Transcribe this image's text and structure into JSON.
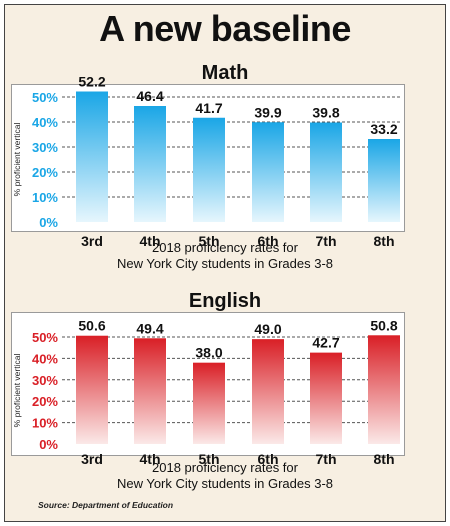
{
  "title": "A new baseline",
  "source": "Source: Department of Education",
  "chart_data": [
    {
      "type": "bar",
      "title": "Math",
      "categories": [
        "3rd",
        "4th",
        "5th",
        "6th",
        "7th",
        "8th"
      ],
      "values": [
        52.2,
        46.4,
        41.7,
        39.9,
        39.8,
        33.2
      ],
      "value_labels": [
        "52.2",
        "46.4",
        "41.7",
        "39.9",
        "39.8",
        "33.2"
      ],
      "ylabel": "% proficient vertical",
      "yticks": [
        "0%",
        "10%",
        "20%",
        "30%",
        "40%",
        "50%"
      ],
      "ylim": [
        0,
        55
      ],
      "xlabel_lines": [
        "2018 proficiency rates for",
        "New York City students in Grades 3-8"
      ],
      "grid": true,
      "colors": {
        "top": "#1aa6e6",
        "bottom": "#e6f6fd",
        "tick": "#1aa6e6"
      }
    },
    {
      "type": "bar",
      "title": "English",
      "categories": [
        "3rd",
        "4th",
        "5th",
        "6th",
        "7th",
        "8th"
      ],
      "values": [
        50.6,
        49.4,
        38.0,
        49.0,
        42.7,
        50.8
      ],
      "value_labels": [
        "50.6",
        "49.4",
        "38.0",
        "49.0",
        "42.7",
        "50.8"
      ],
      "ylabel": "% proficient vertical",
      "yticks": [
        "0%",
        "10%",
        "20%",
        "30%",
        "40%",
        "50%"
      ],
      "ylim": [
        0,
        55
      ],
      "xlabel_lines": [
        "2018 proficiency rates for",
        "New York City students in Grades 3-8"
      ],
      "grid": true,
      "colors": {
        "top": "#d91f26",
        "bottom": "#fbe9e8",
        "tick": "#d91f26"
      }
    }
  ]
}
